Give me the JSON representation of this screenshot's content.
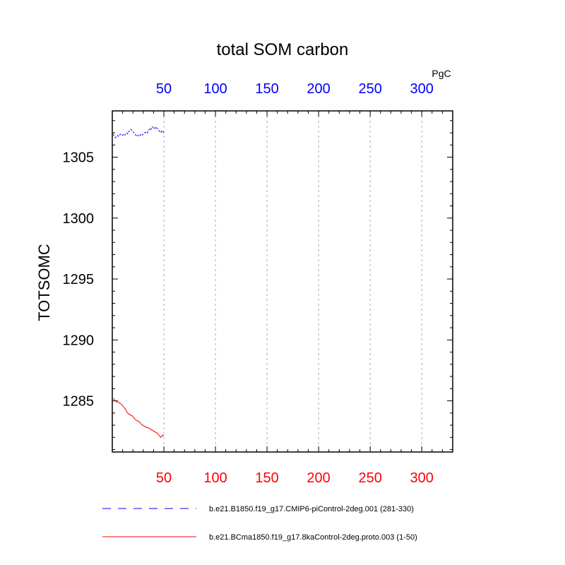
{
  "chart_data": {
    "type": "line",
    "title": "total SOM carbon",
    "ylabel": "TOTSOMC",
    "units": "PgC",
    "xlim": [
      0,
      330
    ],
    "ylim": [
      1280.8,
      1308.8
    ],
    "x_ticks": [
      50,
      100,
      150,
      200,
      250,
      300
    ],
    "y_ticks": [
      1285,
      1290,
      1295,
      1300,
      1305
    ],
    "top_axis_color": "#0000ff",
    "bottom_axis_color": "#ff0000",
    "grid": "vertical dashed at major x ticks",
    "series": [
      {
        "name": "b.e21.B1850.f19_g17.CMIP6-piControl-2deg.001 (281-330)",
        "color": "#0000ff",
        "dash": "dashed",
        "x": [
          1,
          2,
          3,
          4,
          5,
          6,
          7,
          8,
          9,
          10,
          11,
          12,
          13,
          14,
          15,
          16,
          17,
          18,
          19,
          20,
          21,
          22,
          23,
          24,
          25,
          26,
          27,
          28,
          29,
          30,
          31,
          32,
          33,
          34,
          35,
          36,
          37,
          38,
          39,
          40,
          41,
          42,
          43,
          44,
          45,
          46,
          47,
          48,
          49,
          50
        ],
        "y": [
          1306.9,
          1306.7,
          1306.6,
          1306.7,
          1306.8,
          1306.7,
          1306.8,
          1306.9,
          1306.8,
          1306.8,
          1306.9,
          1306.8,
          1306.9,
          1307.0,
          1306.9,
          1307.1,
          1307.2,
          1307.3,
          1307.2,
          1307.1,
          1307.0,
          1306.9,
          1306.8,
          1306.7,
          1306.8,
          1306.7,
          1306.8,
          1306.9,
          1306.8,
          1306.9,
          1307.0,
          1307.0,
          1307.1,
          1307.0,
          1307.2,
          1307.3,
          1307.2,
          1307.4,
          1307.5,
          1307.4,
          1307.3,
          1307.5,
          1307.4,
          1307.3,
          1307.2,
          1307.1,
          1307.0,
          1307.2,
          1307.1,
          1307.0
        ]
      },
      {
        "name": "b.e21.BCma1850.f19_g17.8kaControl-2deg.proto.003 (1-50)",
        "color": "#ff0000",
        "dash": "solid",
        "x": [
          1,
          2,
          3,
          4,
          5,
          6,
          7,
          8,
          9,
          10,
          11,
          12,
          13,
          14,
          15,
          16,
          17,
          18,
          19,
          20,
          21,
          22,
          23,
          24,
          25,
          26,
          27,
          28,
          29,
          30,
          31,
          32,
          33,
          34,
          35,
          36,
          37,
          38,
          39,
          40,
          41,
          42,
          43,
          44,
          45,
          46,
          47,
          48,
          49,
          50
        ],
        "y": [
          1285.2,
          1285.1,
          1285.0,
          1284.9,
          1284.9,
          1284.9,
          1284.8,
          1284.8,
          1284.7,
          1284.6,
          1284.5,
          1284.4,
          1284.3,
          1284.1,
          1284.0,
          1283.9,
          1283.9,
          1283.8,
          1283.8,
          1283.7,
          1283.6,
          1283.5,
          1283.4,
          1283.4,
          1283.3,
          1283.3,
          1283.2,
          1283.1,
          1283.0,
          1283.0,
          1282.9,
          1282.9,
          1282.8,
          1282.8,
          1282.8,
          1282.7,
          1282.7,
          1282.6,
          1282.6,
          1282.5,
          1282.5,
          1282.4,
          1282.4,
          1282.3,
          1282.2,
          1282.1,
          1282.0,
          1282.1,
          1282.2,
          1282.1
        ]
      }
    ]
  }
}
